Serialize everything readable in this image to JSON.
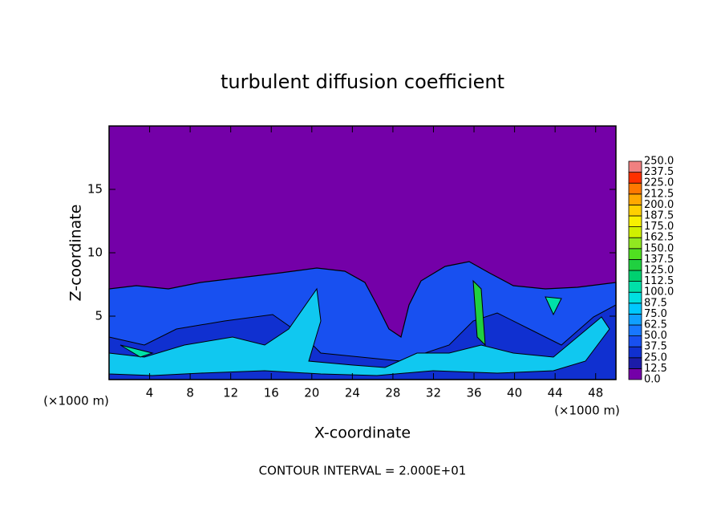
{
  "chart_data": {
    "type": "contour",
    "title": "turbulent diffusion coefficient",
    "xlabel": "X-coordinate",
    "ylabel": "Z-coordinate",
    "x_unit": "(×1000 m)",
    "x_unit_right": "(×1000 m)",
    "note": "CONTOUR INTERVAL = 2.000E+01",
    "xlim": [
      0,
      50
    ],
    "xticks": [
      4,
      8,
      12,
      16,
      20,
      24,
      28,
      32,
      36,
      40,
      44,
      48
    ],
    "ylim": [
      0,
      20
    ],
    "yticks": [
      5,
      10,
      15
    ],
    "colorbar": {
      "levels": [
        {
          "value": 0,
          "label": "0.0"
        },
        {
          "value": 12.5,
          "label": "12.5"
        },
        {
          "value": 25,
          "label": "25.0"
        },
        {
          "value": 37.5,
          "label": "37.5"
        },
        {
          "value": 50,
          "label": "50.0"
        },
        {
          "value": 62.5,
          "label": "62.5"
        },
        {
          "value": 75,
          "label": "75.0"
        },
        {
          "value": 87.5,
          "label": "87.5"
        },
        {
          "value": 100,
          "label": "100.0"
        },
        {
          "value": 112.5,
          "label": "112.5"
        },
        {
          "value": 125,
          "label": "125.0"
        },
        {
          "value": 137.5,
          "label": "137.5"
        },
        {
          "value": 150,
          "label": "150.0"
        },
        {
          "value": 162.5,
          "label": "162.5"
        },
        {
          "value": 175,
          "label": "175.0"
        },
        {
          "value": 187.5,
          "label": "187.5"
        },
        {
          "value": 200,
          "label": "200.0"
        },
        {
          "value": 212.5,
          "label": "212.5"
        },
        {
          "value": 225,
          "label": "225.0"
        },
        {
          "value": 237.5,
          "label": "237.5"
        },
        {
          "value": 250,
          "label": "250.0"
        }
      ],
      "colors": [
        "#7400a8",
        "#1c1ca8",
        "#1030d0",
        "#1850f0",
        "#1878ff",
        "#10a0ff",
        "#00c8ff",
        "#00e0e0",
        "#00e0a8",
        "#00d070",
        "#20d040",
        "#50e020",
        "#90e820",
        "#d0f000",
        "#f8f000",
        "#ffd000",
        "#ffa800",
        "#ff7800",
        "#ff3000",
        "#f08080"
      ]
    }
  }
}
